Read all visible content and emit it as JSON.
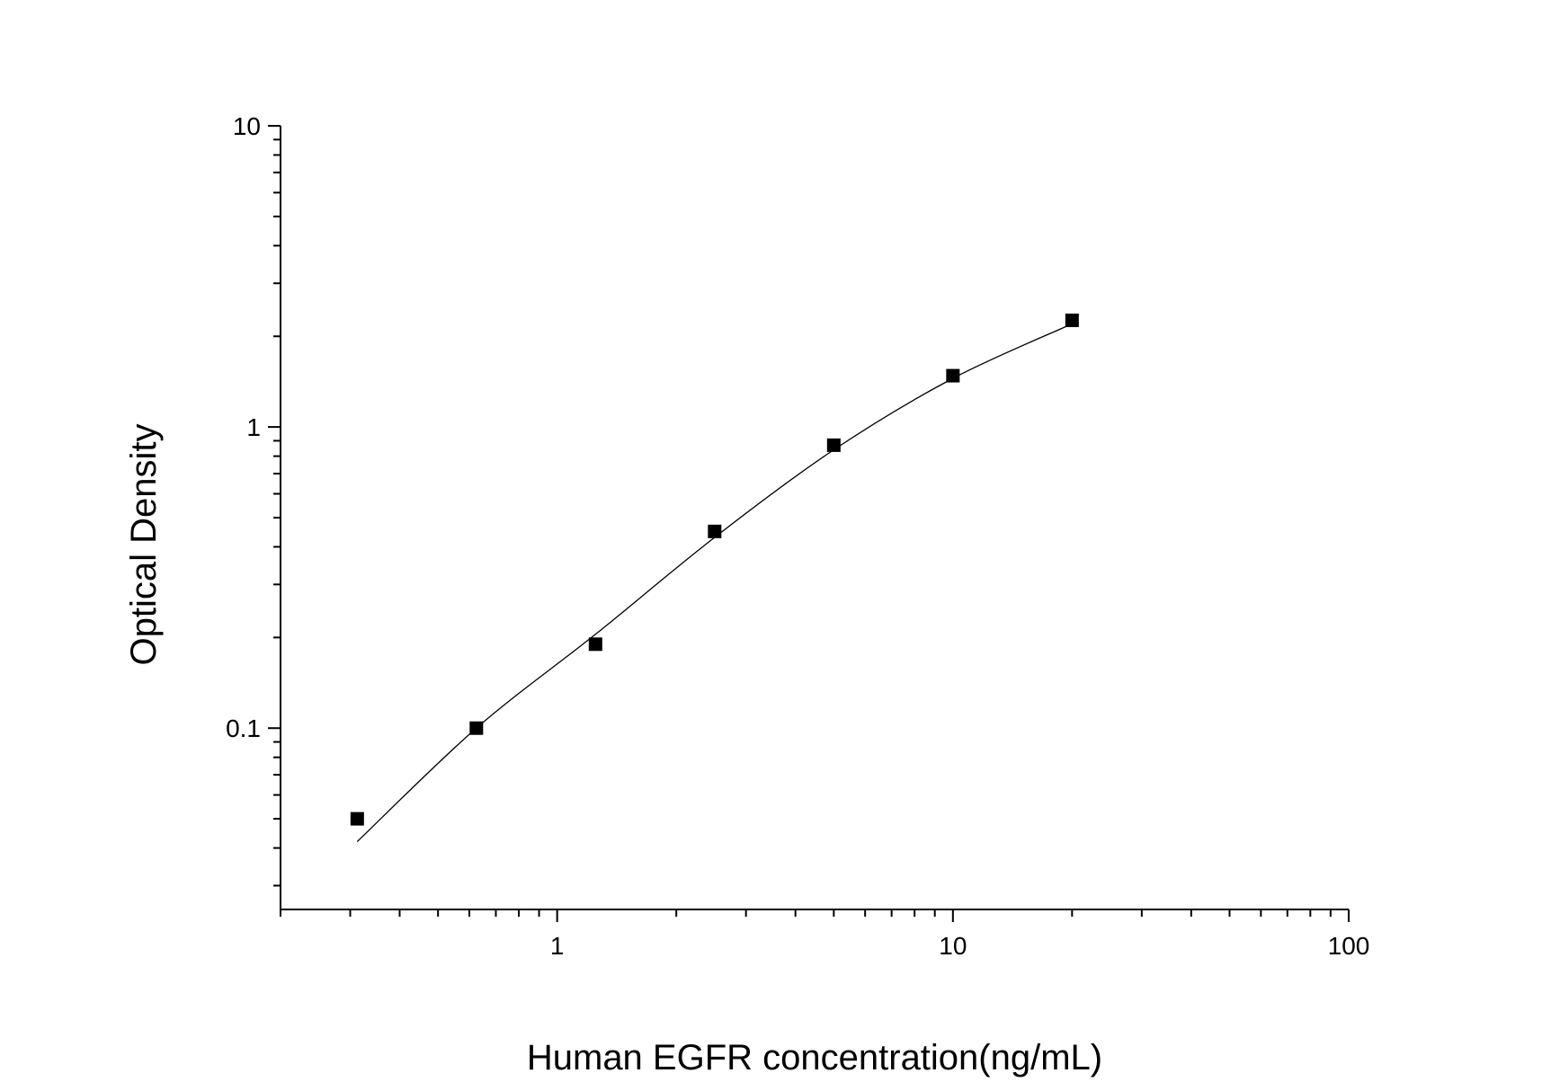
{
  "chart_data": {
    "type": "scatter",
    "title": "",
    "xlabel": "Human EGFR concentration(ng/mL)",
    "ylabel": "Optical Density",
    "xscale": "log",
    "yscale": "log",
    "xlim": [
      0.2,
      100
    ],
    "ylim": [
      0.025,
      10
    ],
    "x_ticks": [
      1,
      10,
      100
    ],
    "x_tick_labels": [
      "1",
      "10",
      "100"
    ],
    "y_ticks": [
      0.1,
      1,
      10
    ],
    "y_tick_labels": [
      "0.1",
      "1",
      "10"
    ],
    "grid": false,
    "legend": "none",
    "series": [
      {
        "type": "scatter",
        "marker": "square",
        "color": "#000000",
        "x": [
          0.3125,
          0.625,
          1.25,
          2.5,
          5,
          10,
          20
        ],
        "y": [
          0.05,
          0.1,
          0.19,
          0.45,
          0.87,
          1.48,
          2.26
        ]
      },
      {
        "type": "fit-line",
        "color": "#000000",
        "x": [
          0.3125,
          0.625,
          1.25,
          2.5,
          5,
          10,
          20
        ],
        "y": [
          0.042,
          0.1,
          0.205,
          0.43,
          0.84,
          1.45,
          2.2
        ]
      }
    ]
  }
}
